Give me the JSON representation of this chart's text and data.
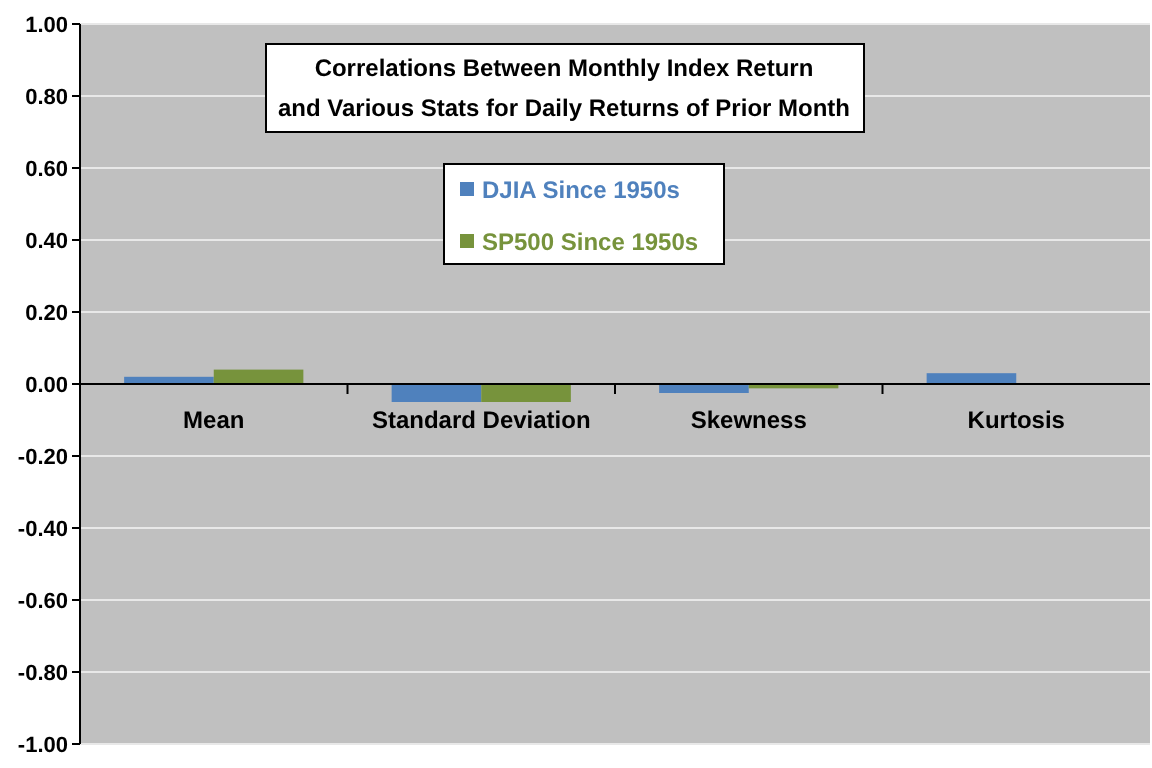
{
  "chart_data": {
    "type": "bar",
    "title": "Correlations Between Monthly Index Return\nand Various Stats for Daily Returns of Prior Month",
    "categories": [
      "Mean",
      "Standard Deviation",
      "Skewness",
      "Kurtosis"
    ],
    "series": [
      {
        "name": "DJIA Since 1950s",
        "color": "#4f81bd",
        "values": [
          0.02,
          -0.05,
          -0.025,
          0.03
        ]
      },
      {
        "name": "SP500 Since 1950s",
        "color": "#77933c",
        "values": [
          0.04,
          -0.05,
          -0.012,
          0
        ]
      }
    ],
    "ylim": [
      -1,
      1
    ],
    "yticks": [
      {
        "value": -1,
        "label": "-1.00"
      },
      {
        "value": -0.8,
        "label": "-0.80"
      },
      {
        "value": -0.6,
        "label": "-0.60"
      },
      {
        "value": -0.4,
        "label": "-0.40"
      },
      {
        "value": -0.2,
        "label": "-0.20"
      },
      {
        "value": 0,
        "label": "0.00"
      },
      {
        "value": 0.2,
        "label": "0.20"
      },
      {
        "value": 0.4,
        "label": "0.40"
      },
      {
        "value": 0.6,
        "label": "0.60"
      },
      {
        "value": 0.8,
        "label": "0.80"
      },
      {
        "value": 1,
        "label": "1.00"
      }
    ],
    "grid": "y",
    "legend": "top"
  }
}
